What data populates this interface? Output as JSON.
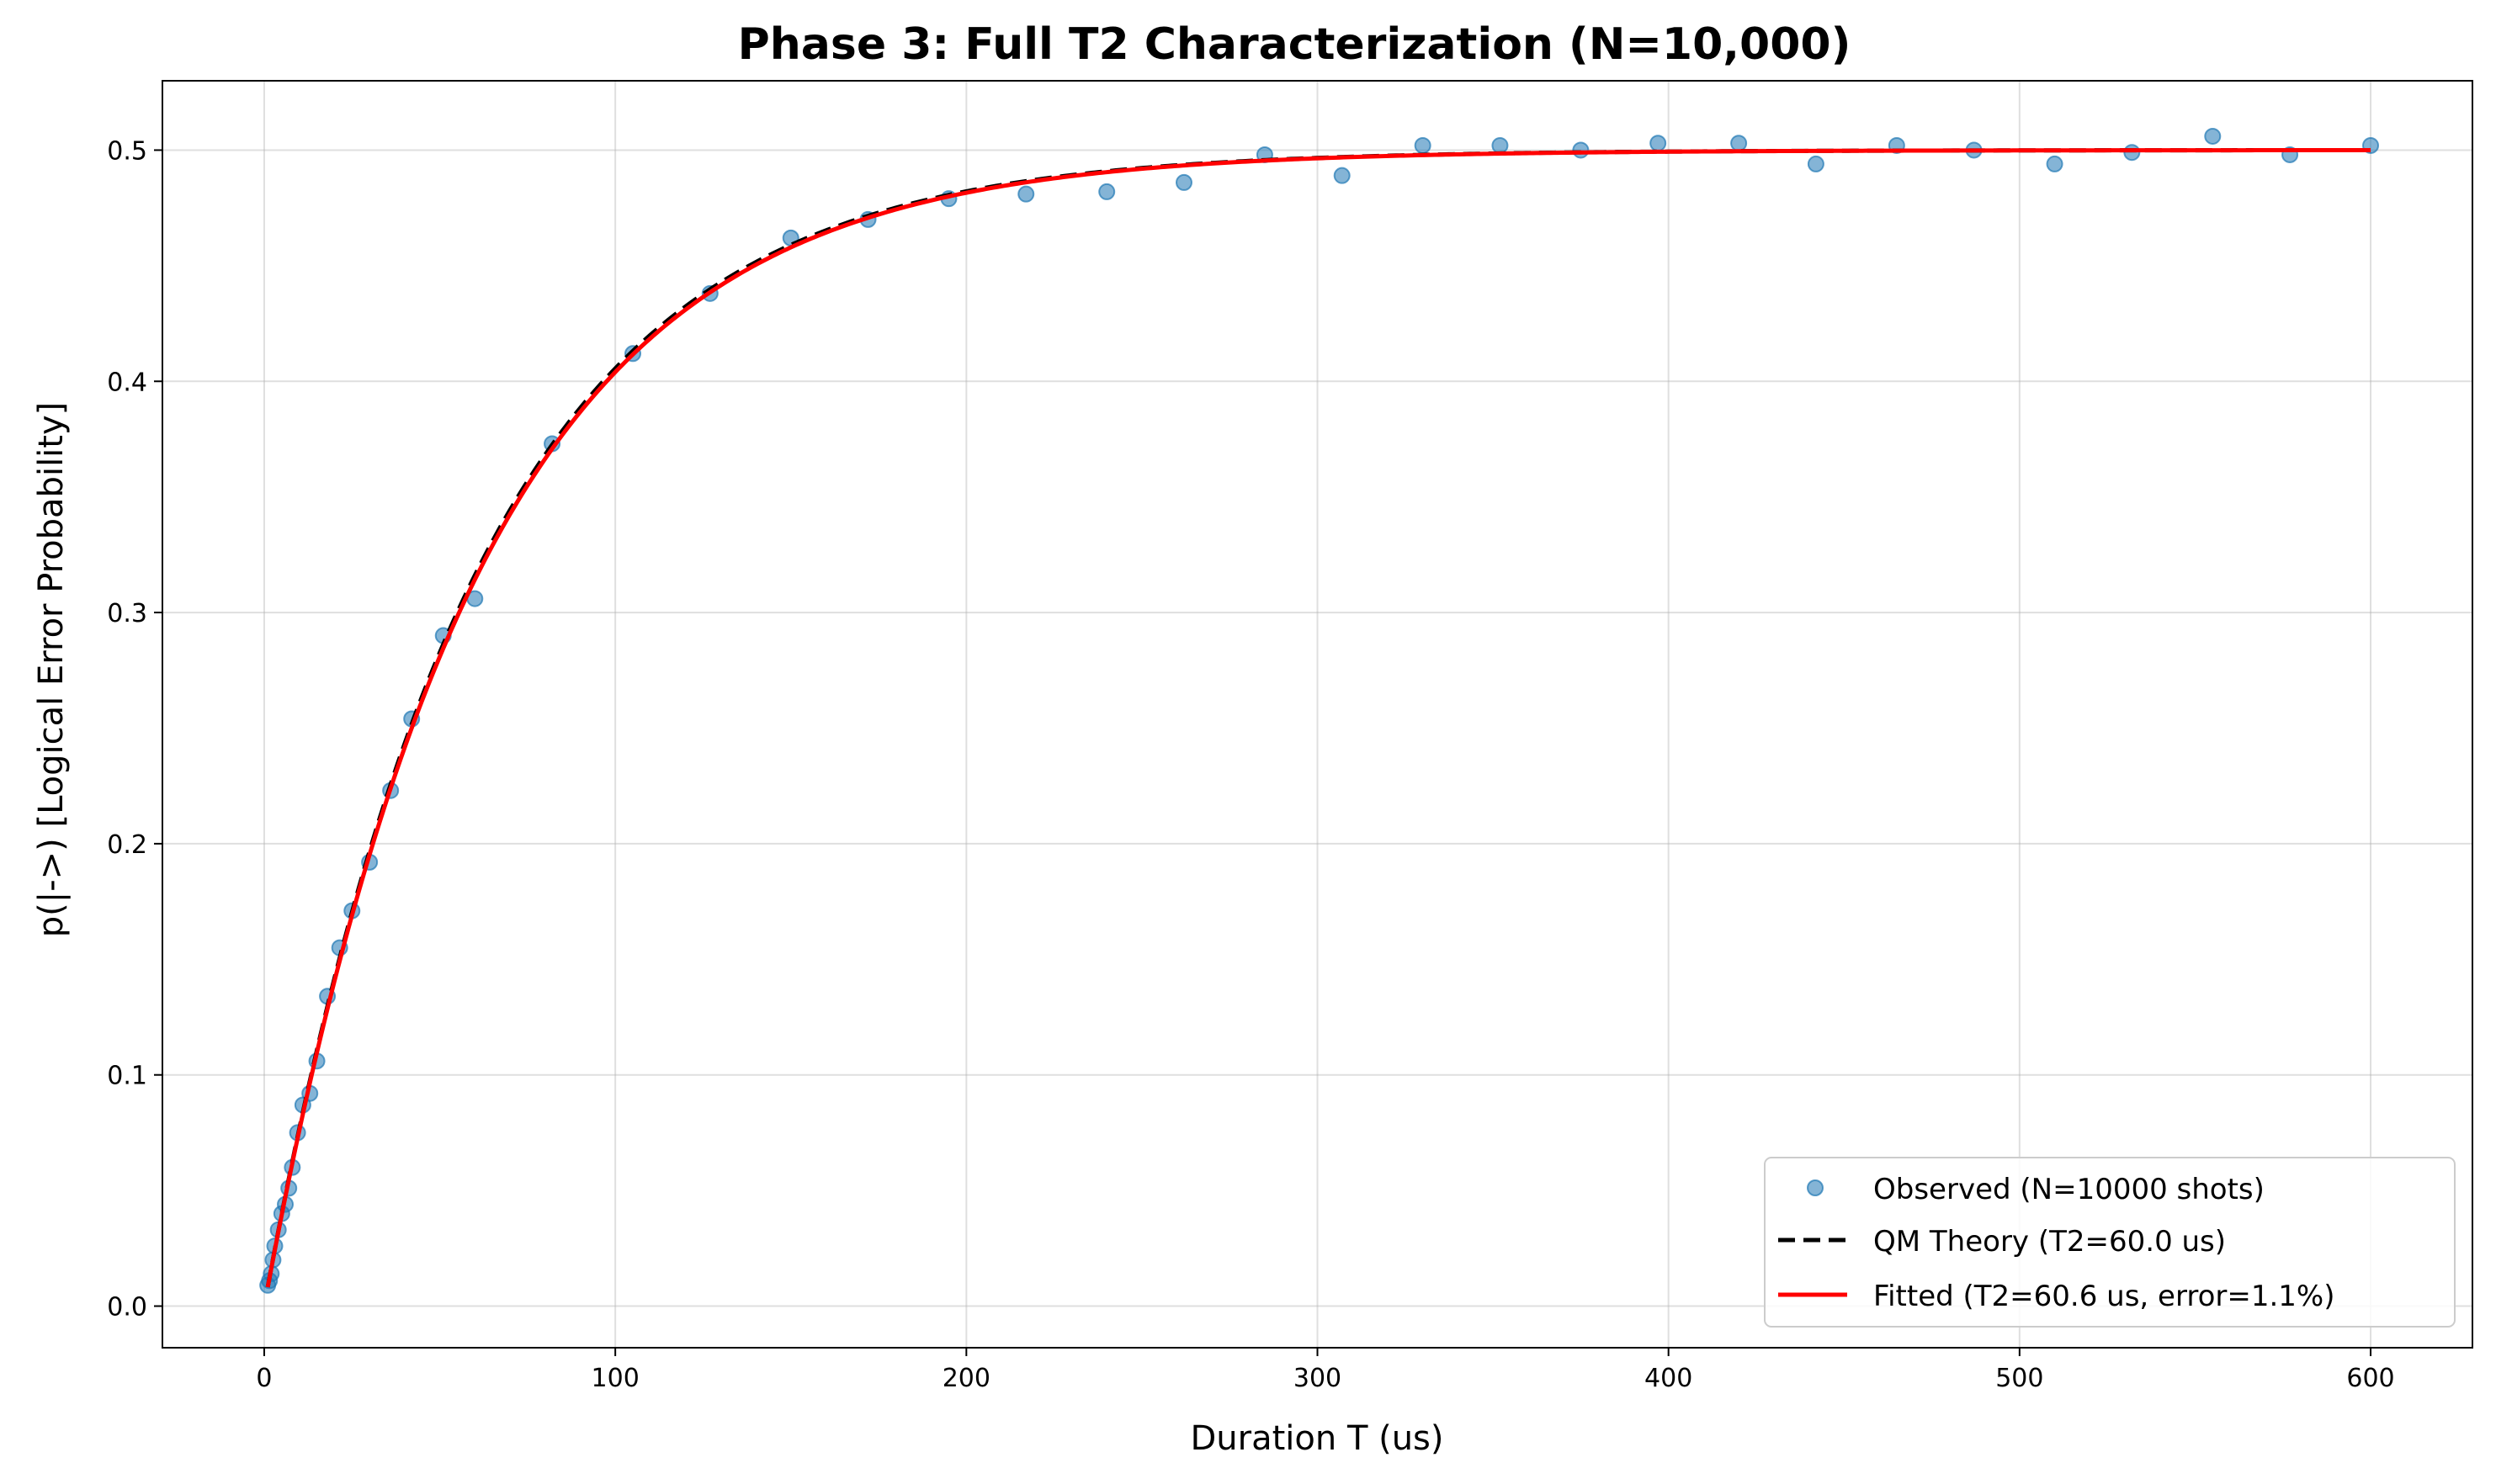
{
  "chart_data": {
    "type": "scatter",
    "title": "Phase 3: Full T2 Characterization (N=10,000)",
    "xlabel": "Duration T (us)",
    "ylabel": "p(|->) [Logical Error Probability]",
    "xlim": [
      -29,
      629
    ],
    "ylim": [
      -0.018,
      0.53
    ],
    "xticks": [
      0,
      100,
      200,
      300,
      400,
      500,
      600
    ],
    "yticks": [
      0.0,
      0.1,
      0.2,
      0.3,
      0.4,
      0.5
    ],
    "xtick_labels": [
      "0",
      "100",
      "200",
      "300",
      "400",
      "500",
      "600"
    ],
    "ytick_labels": [
      "0.0",
      "0.1",
      "0.2",
      "0.3",
      "0.4",
      "0.5"
    ],
    "grid": true,
    "legend_position": "bottom-right",
    "colors": {
      "observed": "#1f77b4",
      "theory": "#000000",
      "fitted": "#ff0000"
    },
    "series": [
      {
        "name": "Observed (N=10000 shots)",
        "kind": "scatter",
        "x": [
          1,
          1.5,
          2,
          2.5,
          3,
          4,
          5,
          6,
          7,
          8,
          9.5,
          11,
          13,
          15,
          18,
          21.5,
          25,
          30,
          36,
          42,
          51,
          60,
          82,
          105,
          127,
          150,
          172,
          195,
          217,
          240,
          262,
          285,
          307,
          330,
          352,
          375,
          397,
          420,
          442,
          465,
          487,
          510,
          532,
          555,
          577,
          600
        ],
        "y": [
          0.009,
          0.011,
          0.014,
          0.02,
          0.026,
          0.033,
          0.04,
          0.044,
          0.051,
          0.06,
          0.075,
          0.087,
          0.092,
          0.106,
          0.134,
          0.155,
          0.171,
          0.192,
          0.223,
          0.254,
          0.29,
          0.306,
          0.373,
          0.412,
          0.438,
          0.462,
          0.47,
          0.479,
          0.481,
          0.482,
          0.486,
          0.498,
          0.489,
          0.502,
          0.502,
          0.5,
          0.503,
          0.503,
          0.494,
          0.502,
          0.5,
          0.494,
          0.499,
          0.506,
          0.498,
          0.502
        ]
      },
      {
        "name": "QM Theory (T2=60.0 us)",
        "kind": "line",
        "style": "dashed",
        "function": "0.5*(1-exp(-x/60.0))",
        "x_range": [
          1,
          600
        ]
      },
      {
        "name": "Fitted (T2=60.6 us, error=1.1%)",
        "kind": "line",
        "style": "solid",
        "function": "0.5*(1-exp(-x/60.6))",
        "x_range": [
          1,
          600
        ]
      }
    ]
  }
}
